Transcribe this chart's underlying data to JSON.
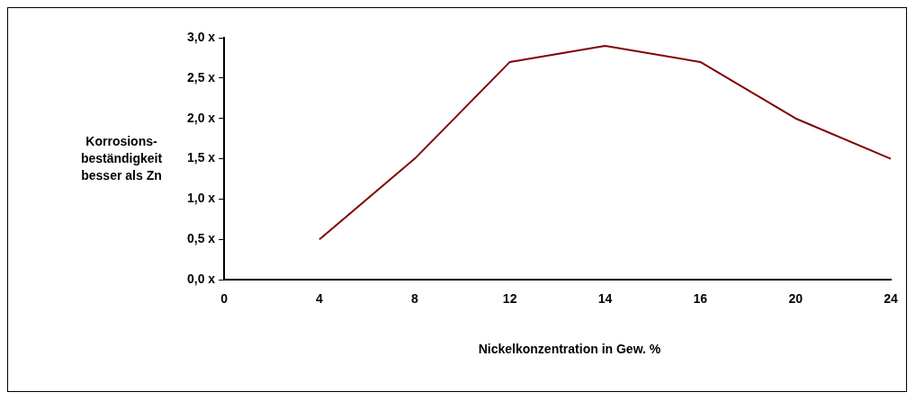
{
  "chart_data": {
    "type": "line",
    "xlabel": "Nickelkonzentration in Gew. %",
    "ylabel": "Korrosions-\nbeständigkeit\nbesser als Zn",
    "categories": [
      "0",
      "4",
      "8",
      "12",
      "14",
      "16",
      "20",
      "24"
    ],
    "series": [
      {
        "color": "#800000",
        "values": [
          null,
          0.5,
          1.5,
          2.7,
          2.9,
          2.7,
          2.0,
          1.5
        ]
      }
    ],
    "ylim": [
      0,
      3
    ],
    "yticks": [
      {
        "value": 0,
        "label": "0,0 x"
      },
      {
        "value": 0.5,
        "label": "0,5 x"
      },
      {
        "value": 1,
        "label": "1,0 x"
      },
      {
        "value": 1.5,
        "label": "1,5 x"
      },
      {
        "value": 2,
        "label": "2,0 x"
      },
      {
        "value": 2.5,
        "label": "2,5 x"
      },
      {
        "value": 3,
        "label": "3,0 x"
      }
    ],
    "grid": false,
    "legend": false,
    "marker": "none",
    "line_style": "solid"
  }
}
